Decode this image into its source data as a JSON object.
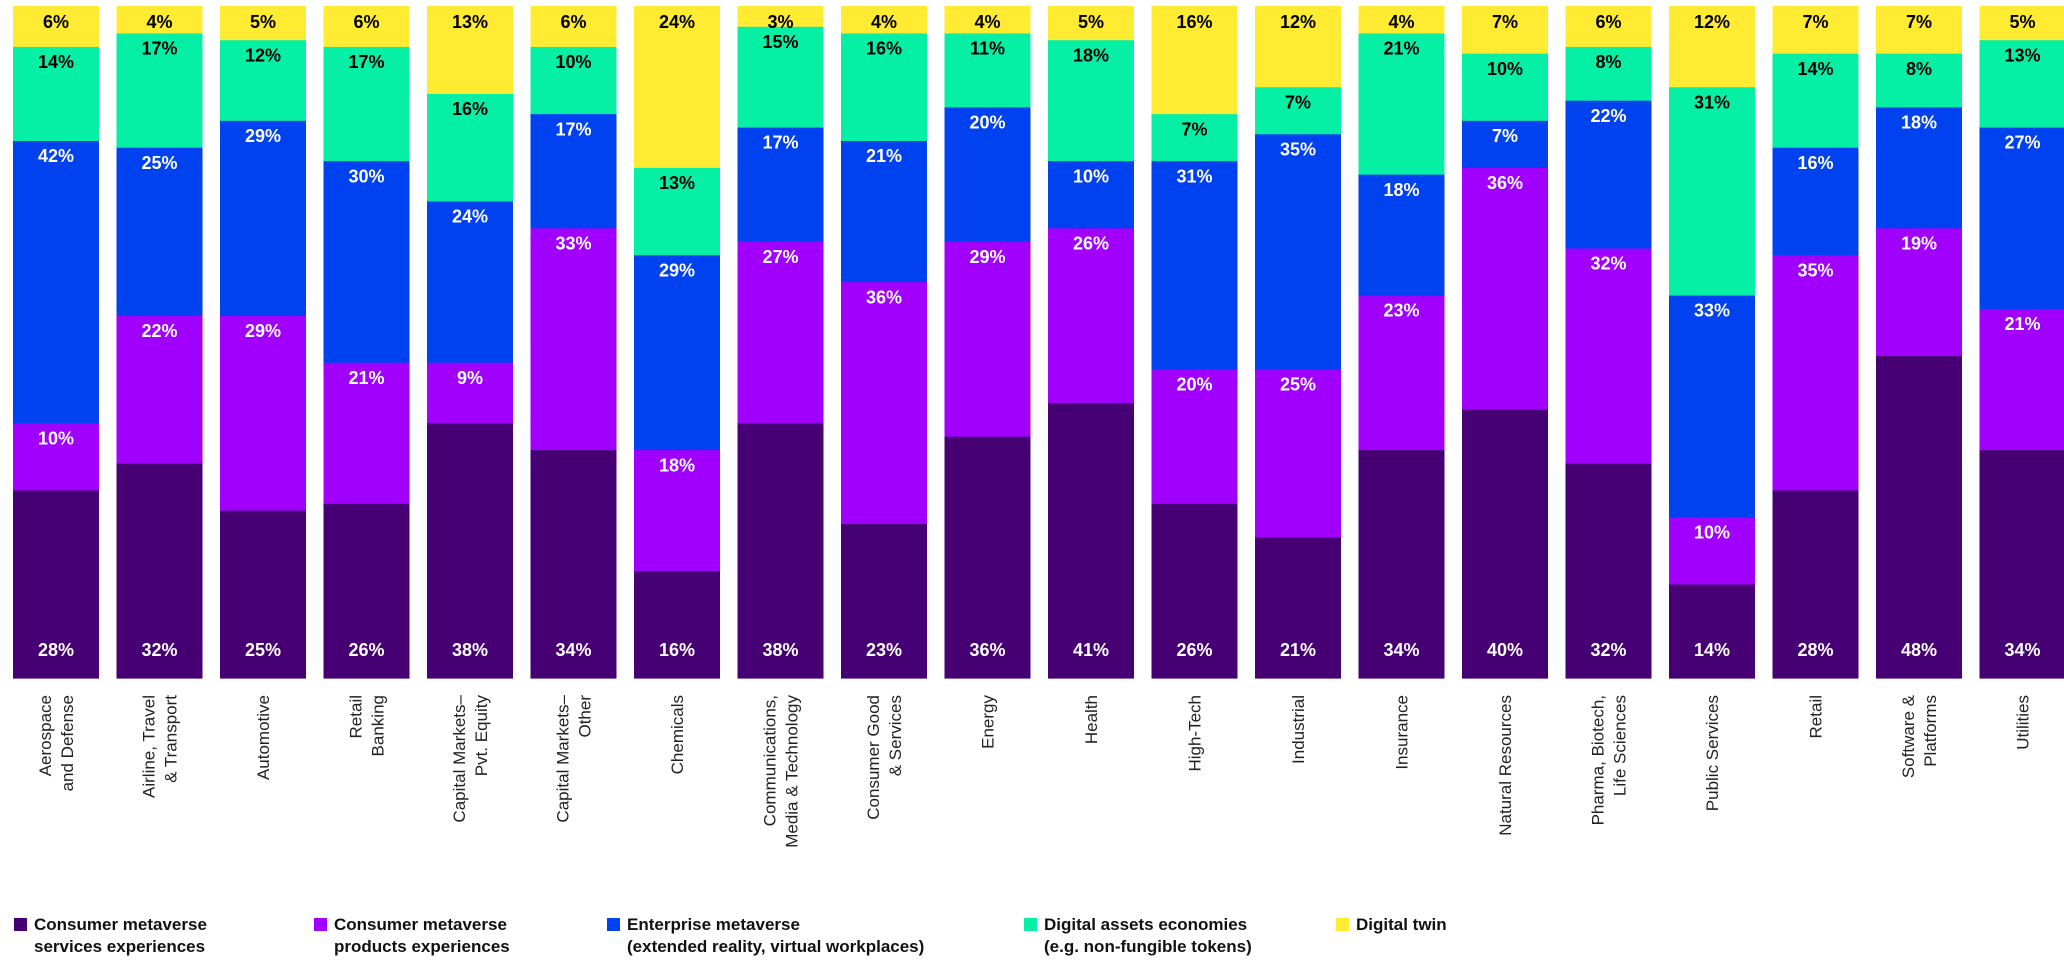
{
  "chart_data": {
    "type": "bar",
    "stacked": true,
    "normalized": true,
    "categories": [
      [
        "Aerospace",
        "and Defense"
      ],
      [
        "Airline, Travel",
        "& Transport"
      ],
      [
        "Automotive"
      ],
      [
        "Retail",
        "Banking"
      ],
      [
        "Capital Markets–",
        "Pvt. Equity"
      ],
      [
        "Capital Markets–",
        "Other"
      ],
      [
        "Chemicals"
      ],
      [
        "Communications,",
        "Media & Technology"
      ],
      [
        "Consumer Good",
        "& Services"
      ],
      [
        "Energy"
      ],
      [
        "Health"
      ],
      [
        "High-Tech"
      ],
      [
        "Industrial"
      ],
      [
        "Insurance"
      ],
      [
        "Natural Resources"
      ],
      [
        "Pharma, Biotech,",
        "Life Sciences"
      ],
      [
        "Public Services"
      ],
      [
        "Retail"
      ],
      [
        "Software &",
        "Platforms"
      ],
      [
        "Utilities"
      ]
    ],
    "series": [
      {
        "name": "Consumer metaverse services experiences",
        "legend_lines": [
          "Consumer metaverse",
          "services experiences"
        ],
        "color": "#460073",
        "label_color": "#ffffff",
        "values": [
          28,
          32,
          25,
          26,
          38,
          34,
          16,
          38,
          23,
          36,
          41,
          26,
          21,
          34,
          40,
          32,
          14,
          28,
          48,
          34
        ]
      },
      {
        "name": "Consumer metaverse products experiences",
        "legend_lines": [
          "Consumer metaverse",
          "products experiences"
        ],
        "color": "#a100ff",
        "label_color": "#ffffff",
        "values": [
          10,
          22,
          29,
          21,
          9,
          33,
          18,
          27,
          36,
          29,
          26,
          20,
          25,
          23,
          36,
          32,
          10,
          35,
          19,
          21
        ]
      },
      {
        "name": "Enterprise metaverse (extended reality, virtual workplaces)",
        "legend_lines": [
          "Enterprise metaverse",
          "(extended reality, virtual workplaces)"
        ],
        "color": "#0041f0",
        "label_color": "#ffffff",
        "values": [
          42,
          25,
          29,
          30,
          24,
          17,
          29,
          17,
          21,
          20,
          10,
          31,
          35,
          18,
          7,
          22,
          33,
          16,
          18,
          27
        ]
      },
      {
        "name": "Digital assets economies (e.g. non-fungible tokens)",
        "legend_lines": [
          "Digital assets economies",
          "(e.g. non-fungible tokens)"
        ],
        "color": "#05f0a5",
        "label_color": "#000000",
        "values": [
          14,
          17,
          12,
          17,
          16,
          10,
          13,
          15,
          16,
          11,
          18,
          7,
          7,
          21,
          10,
          8,
          31,
          14,
          8,
          13
        ]
      },
      {
        "name": "Digital twin",
        "legend_lines": [
          "Digital twin"
        ],
        "color": "#ffeb32",
        "label_color": "#000000",
        "values": [
          6,
          4,
          5,
          6,
          13,
          6,
          24,
          3,
          4,
          4,
          5,
          16,
          12,
          4,
          7,
          6,
          12,
          7,
          7,
          5
        ]
      }
    ],
    "value_suffix": "%",
    "title": "",
    "xlabel": "",
    "ylabel": "",
    "legend_position": "bottom-left"
  }
}
